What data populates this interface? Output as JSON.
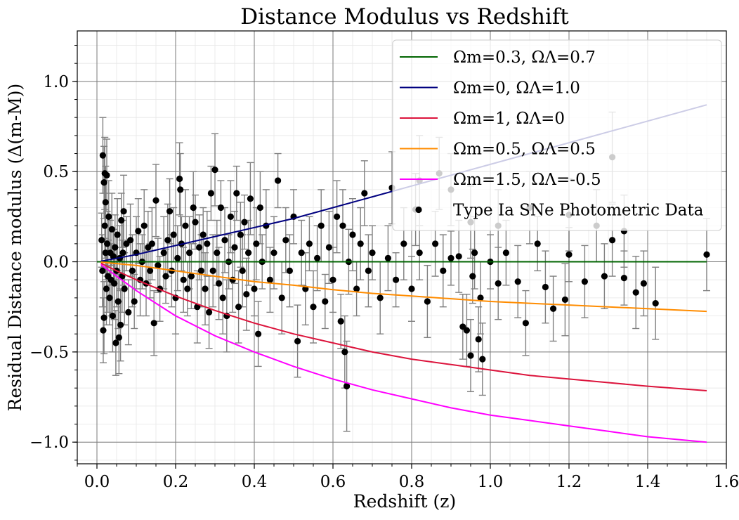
{
  "chart_data": {
    "type": "scatter",
    "title": "Distance Modulus vs Redshift",
    "xlabel": "Redshift (z)",
    "ylabel": "Residual Distance modulus (Δ(m-M))",
    "xlim": [
      -0.05,
      1.6
    ],
    "ylim": [
      -1.12,
      1.28
    ],
    "grid": true,
    "minor_grid": true,
    "legend_position": "top-right",
    "x_ticks": [
      0.0,
      0.2,
      0.4,
      0.6,
      0.8,
      1.0,
      1.2,
      1.4,
      1.6
    ],
    "x_tick_labels": [
      "0.0",
      "0.2",
      "0.4",
      "0.6",
      "0.8",
      "1.0",
      "1.2",
      "1.4",
      "1.6"
    ],
    "y_ticks": [
      -1.0,
      -0.5,
      0.0,
      0.5,
      1.0
    ],
    "y_tick_labels": [
      "−1.0",
      "−0.5",
      "0.0",
      "0.5",
      "1.0"
    ],
    "legend": [
      {
        "label": "Ωm=0.3, ΩΛ=0.7",
        "color": "#006400",
        "marker": "line"
      },
      {
        "label": "Ωm=0, ΩΛ=1.0",
        "color": "#000080",
        "marker": "line"
      },
      {
        "label": "Ωm=1, ΩΛ=0",
        "color": "#dc143c",
        "marker": "line"
      },
      {
        "label": "Ωm=0.5, ΩΛ=0.5",
        "color": "#ff8c00",
        "marker": "line"
      },
      {
        "label": "Ωm=1.5, ΩΛ=-0.5",
        "color": "#ff00ff",
        "marker": "line"
      },
      {
        "label": "Type Ia SNe Photometric Data",
        "color": "#000000",
        "marker": "point"
      }
    ],
    "series": [
      {
        "name": "Ωm=0.3, ΩΛ=0.7",
        "kind": "line",
        "color": "#006400",
        "x": [
          0.0,
          0.2,
          0.4,
          0.6,
          0.8,
          1.0,
          1.2,
          1.4,
          1.55
        ],
        "y": [
          0.0,
          0.0,
          0.0,
          0.0,
          0.0,
          0.0,
          0.0,
          0.0,
          0.0
        ]
      },
      {
        "name": "Ωm=0, ΩΛ=1.0",
        "kind": "line",
        "color": "#000080",
        "x": [
          0.01,
          0.1,
          0.2,
          0.3,
          0.4,
          0.5,
          0.6,
          0.7,
          0.8,
          0.9,
          1.0,
          1.1,
          1.2,
          1.3,
          1.4,
          1.55
        ],
        "y": [
          0.003,
          0.04,
          0.09,
          0.14,
          0.19,
          0.24,
          0.3,
          0.36,
          0.42,
          0.48,
          0.54,
          0.6,
          0.66,
          0.72,
          0.78,
          0.87
        ]
      },
      {
        "name": "Ωm=1, ΩΛ=0",
        "kind": "line",
        "color": "#dc143c",
        "x": [
          0.01,
          0.05,
          0.1,
          0.2,
          0.3,
          0.4,
          0.5,
          0.6,
          0.7,
          0.8,
          0.9,
          1.0,
          1.1,
          1.2,
          1.3,
          1.4,
          1.55
        ],
        "y": [
          -0.008,
          -0.05,
          -0.1,
          -0.19,
          -0.27,
          -0.34,
          -0.4,
          -0.45,
          -0.5,
          -0.54,
          -0.57,
          -0.6,
          -0.63,
          -0.65,
          -0.67,
          -0.69,
          -0.715
        ]
      },
      {
        "name": "Ωm=0.5, ΩΛ=0.5",
        "kind": "line",
        "color": "#ff8c00",
        "x": [
          0.01,
          0.05,
          0.1,
          0.2,
          0.3,
          0.4,
          0.5,
          0.6,
          0.7,
          0.8,
          0.9,
          1.0,
          1.1,
          1.2,
          1.3,
          1.4,
          1.55
        ],
        "y": [
          -0.002,
          -0.01,
          -0.02,
          -0.05,
          -0.08,
          -0.11,
          -0.13,
          -0.155,
          -0.175,
          -0.19,
          -0.205,
          -0.22,
          -0.23,
          -0.24,
          -0.25,
          -0.26,
          -0.275
        ]
      },
      {
        "name": "Ωm=1.5, ΩΛ=-0.5",
        "kind": "line",
        "color": "#ff00ff",
        "x": [
          0.01,
          0.05,
          0.1,
          0.15,
          0.2,
          0.3,
          0.4,
          0.5,
          0.6,
          0.7,
          0.8,
          0.9,
          1.0,
          1.1,
          1.2,
          1.3,
          1.4,
          1.55
        ],
        "y": [
          -0.015,
          -0.08,
          -0.16,
          -0.23,
          -0.3,
          -0.41,
          -0.5,
          -0.58,
          -0.65,
          -0.71,
          -0.76,
          -0.81,
          -0.85,
          -0.88,
          -0.91,
          -0.94,
          -0.97,
          -1.0
        ]
      },
      {
        "name": "Type Ia SNe Photometric Data",
        "kind": "scatter",
        "color": "#000000",
        "errcolor": "#808080",
        "points": [
          [
            0.015,
            0.59,
            0.21
          ],
          [
            0.018,
            0.44,
            0.2
          ],
          [
            0.02,
            0.49,
            0.2
          ],
          [
            0.022,
            0.33,
            0.2
          ],
          [
            0.025,
            0.48,
            0.2
          ],
          [
            0.012,
            0.12,
            0.15
          ],
          [
            0.014,
            -0.05,
            0.2
          ],
          [
            0.016,
            -0.38,
            0.18
          ],
          [
            0.018,
            -0.31,
            0.2
          ],
          [
            0.02,
            0.2,
            0.18
          ],
          [
            0.022,
            0.05,
            0.15
          ],
          [
            0.024,
            -0.15,
            0.2
          ],
          [
            0.026,
            0.1,
            0.18
          ],
          [
            0.028,
            -0.08,
            0.2
          ],
          [
            0.03,
            0.25,
            0.2
          ],
          [
            0.032,
            -0.2,
            0.15
          ],
          [
            0.034,
            0.05,
            0.18
          ],
          [
            0.036,
            -0.1,
            0.2
          ],
          [
            0.038,
            0.18,
            0.2
          ],
          [
            0.04,
            -0.3,
            0.2
          ],
          [
            0.042,
            0.03,
            0.15
          ],
          [
            0.044,
            -0.12,
            0.2
          ],
          [
            0.046,
            0.08,
            0.18
          ],
          [
            0.048,
            -0.45,
            0.18
          ],
          [
            0.05,
            -0.05,
            0.2
          ],
          [
            0.052,
            0.15,
            0.2
          ],
          [
            0.054,
            -0.22,
            0.15
          ],
          [
            0.056,
            -0.42,
            0.2
          ],
          [
            0.058,
            0.02,
            0.18
          ],
          [
            0.06,
            -0.35,
            0.2
          ],
          [
            0.062,
            0.23,
            0.15
          ],
          [
            0.064,
            -0.08,
            0.2
          ],
          [
            0.066,
            0.05,
            0.18
          ],
          [
            0.068,
            0.28,
            0.2
          ],
          [
            0.07,
            -0.15,
            0.2
          ],
          [
            0.075,
            0.1,
            0.15
          ],
          [
            0.08,
            -0.28,
            0.18
          ],
          [
            0.085,
            0.12,
            0.2
          ],
          [
            0.09,
            -0.05,
            0.2
          ],
          [
            0.095,
            -0.22,
            0.15
          ],
          [
            0.1,
            0.05,
            0.2
          ],
          [
            0.105,
            0.17,
            0.18
          ],
          [
            0.11,
            -0.1,
            0.2
          ],
          [
            0.115,
            0.0,
            0.15
          ],
          [
            0.12,
            0.2,
            0.2
          ],
          [
            0.125,
            -0.12,
            0.18
          ],
          [
            0.13,
            0.08,
            0.2
          ],
          [
            0.135,
            -0.05,
            0.15
          ],
          [
            0.14,
            0.1,
            0.2
          ],
          [
            0.145,
            -0.34,
            0.18
          ],
          [
            0.15,
            0.34,
            0.2
          ],
          [
            0.155,
            -0.02,
            0.15
          ],
          [
            0.16,
            -0.15,
            0.18
          ],
          [
            0.17,
            0.05,
            0.2
          ],
          [
            0.175,
            -0.08,
            0.15
          ],
          [
            0.18,
            0.12,
            0.2
          ],
          [
            0.185,
            0.28,
            0.18
          ],
          [
            0.19,
            -0.05,
            0.2
          ],
          [
            0.195,
            0.15,
            0.15
          ],
          [
            0.2,
            -0.2,
            0.2
          ],
          [
            0.205,
            0.02,
            0.18
          ],
          [
            0.21,
            0.46,
            0.2
          ],
          [
            0.212,
            0.4,
            0.2
          ],
          [
            0.215,
            0.1,
            0.15
          ],
          [
            0.22,
            -0.1,
            0.18
          ],
          [
            0.225,
            0.2,
            0.2
          ],
          [
            0.23,
            -0.15,
            0.15
          ],
          [
            0.235,
            0.05,
            0.2
          ],
          [
            0.24,
            -0.08,
            0.18
          ],
          [
            0.245,
            0.3,
            0.2
          ],
          [
            0.25,
            0.22,
            0.15
          ],
          [
            0.255,
            -0.25,
            0.2
          ],
          [
            0.26,
            0.08,
            0.18
          ],
          [
            0.265,
            -0.05,
            0.2
          ],
          [
            0.27,
            0.15,
            0.15
          ],
          [
            0.275,
            -0.15,
            0.2
          ],
          [
            0.28,
            0.1,
            0.18
          ],
          [
            0.285,
            -0.28,
            0.2
          ],
          [
            0.29,
            0.38,
            0.15
          ],
          [
            0.295,
            -0.05,
            0.2
          ],
          [
            0.3,
            0.51,
            0.2
          ],
          [
            0.305,
            0.05,
            0.18
          ],
          [
            0.31,
            -0.12,
            0.2
          ],
          [
            0.315,
            0.3,
            0.15
          ],
          [
            0.32,
            -0.2,
            0.2
          ],
          [
            0.325,
            0.12,
            0.18
          ],
          [
            0.33,
            -0.3,
            0.2
          ],
          [
            0.335,
            0.0,
            0.15
          ],
          [
            0.34,
            0.25,
            0.2
          ],
          [
            0.345,
            -0.1,
            0.18
          ],
          [
            0.35,
            0.08,
            0.2
          ],
          [
            0.355,
            0.38,
            0.15
          ],
          [
            0.36,
            -0.25,
            0.2
          ],
          [
            0.365,
            0.15,
            0.18
          ],
          [
            0.37,
            -0.05,
            0.2
          ],
          [
            0.375,
            0.22,
            0.15
          ],
          [
            0.38,
            -0.18,
            0.2
          ],
          [
            0.385,
            0.05,
            0.18
          ],
          [
            0.39,
            0.35,
            0.2
          ],
          [
            0.4,
            -0.15,
            0.15
          ],
          [
            0.405,
            0.1,
            0.2
          ],
          [
            0.41,
            -0.4,
            0.18
          ],
          [
            0.415,
            0.3,
            0.2
          ],
          [
            0.42,
            0.0,
            0.15
          ],
          [
            0.43,
            0.2,
            0.2
          ],
          [
            0.44,
            -0.1,
            0.18
          ],
          [
            0.45,
            0.05,
            0.2
          ],
          [
            0.46,
            0.45,
            0.15
          ],
          [
            0.47,
            -0.2,
            0.2
          ],
          [
            0.48,
            0.12,
            0.18
          ],
          [
            0.49,
            -0.05,
            0.2
          ],
          [
            0.5,
            0.25,
            0.15
          ],
          [
            0.51,
            -0.44,
            0.2
          ],
          [
            0.52,
            0.05,
            0.18
          ],
          [
            0.53,
            -0.15,
            0.2
          ],
          [
            0.54,
            0.1,
            0.15
          ],
          [
            0.55,
            -0.25,
            0.2
          ],
          [
            0.56,
            0.02,
            0.18
          ],
          [
            0.57,
            0.2,
            0.2
          ],
          [
            0.58,
            -0.22,
            0.15
          ],
          [
            0.59,
            0.08,
            0.2
          ],
          [
            0.6,
            -0.1,
            0.18
          ],
          [
            0.61,
            0.25,
            0.2
          ],
          [
            0.62,
            -0.33,
            0.15
          ],
          [
            0.625,
            0.2,
            0.2
          ],
          [
            0.63,
            -0.5,
            0.2
          ],
          [
            0.635,
            -0.69,
            0.25
          ],
          [
            0.64,
            0.0,
            0.18
          ],
          [
            0.65,
            0.15,
            0.2
          ],
          [
            0.66,
            -0.15,
            0.15
          ],
          [
            0.67,
            0.1,
            0.2
          ],
          [
            0.68,
            0.38,
            0.18
          ],
          [
            0.69,
            -0.05,
            0.2
          ],
          [
            0.7,
            0.05,
            0.15
          ],
          [
            0.72,
            -0.2,
            0.2
          ],
          [
            0.74,
            0.02,
            0.18
          ],
          [
            0.75,
            0.41,
            0.2
          ],
          [
            0.76,
            -0.1,
            0.15
          ],
          [
            0.78,
            0.1,
            0.2
          ],
          [
            0.8,
            -0.15,
            0.18
          ],
          [
            0.81,
            0.29,
            0.2
          ],
          [
            0.82,
            0.05,
            0.15
          ],
          [
            0.84,
            -0.22,
            0.2
          ],
          [
            0.86,
            0.1,
            0.18
          ],
          [
            0.88,
            -0.05,
            0.2
          ],
          [
            0.9,
            0.02,
            0.15
          ],
          [
            0.92,
            0.03,
            0.2
          ],
          [
            0.93,
            -0.36,
            0.18
          ],
          [
            0.94,
            -0.38,
            0.2
          ],
          [
            0.95,
            -0.52,
            0.2
          ],
          [
            0.955,
            -0.08,
            0.15
          ],
          [
            0.96,
            0.05,
            0.2
          ],
          [
            0.97,
            -0.43,
            0.18
          ],
          [
            0.975,
            -0.2,
            0.2
          ],
          [
            0.98,
            -0.54,
            0.2
          ],
          [
            1.0,
            0.0,
            0.15
          ],
          [
            1.02,
            -0.12,
            0.2
          ],
          [
            1.04,
            0.05,
            0.18
          ],
          [
            1.07,
            -0.11,
            0.2
          ],
          [
            1.09,
            -0.34,
            0.18
          ],
          [
            1.12,
            0.1,
            0.15
          ],
          [
            1.14,
            -0.14,
            0.2
          ],
          [
            1.16,
            -0.26,
            0.18
          ],
          [
            1.19,
            -0.21,
            0.2
          ],
          [
            1.2,
            0.04,
            0.15
          ],
          [
            1.24,
            -0.11,
            0.2
          ],
          [
            1.29,
            -0.08,
            0.18
          ],
          [
            1.31,
            0.12,
            0.2
          ],
          [
            1.34,
            -0.09,
            0.15
          ],
          [
            1.37,
            -0.17,
            0.2
          ],
          [
            1.39,
            -0.12,
            0.18
          ],
          [
            1.42,
            -0.23,
            0.2
          ],
          [
            1.55,
            0.04,
            0.2
          ],
          [
            0.82,
            0.45,
            0.25
          ],
          [
            0.87,
            0.49,
            0.2
          ],
          [
            0.9,
            0.4,
            0.2
          ],
          [
            0.95,
            0.22,
            0.2
          ],
          [
            1.02,
            0.2,
            0.2
          ],
          [
            1.1,
            0.3,
            0.2
          ],
          [
            1.2,
            0.26,
            0.2
          ],
          [
            1.27,
            0.2,
            0.2
          ],
          [
            1.31,
            0.58,
            0.25
          ],
          [
            1.34,
            0.17,
            0.2
          ]
        ]
      }
    ]
  }
}
